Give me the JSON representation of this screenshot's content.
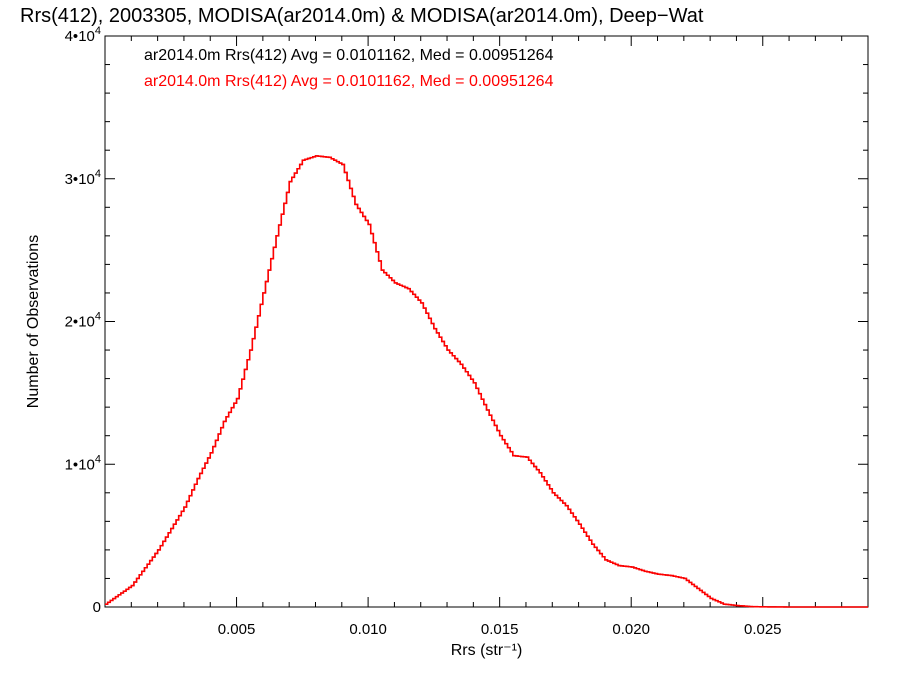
{
  "chart_data": {
    "type": "line",
    "title": "Rrs(412), 2003305, MODISA(ar2014.0m) & MODISA(ar2014.0m), Deep−Wat",
    "xlabel": "Rrs (str⁻¹)",
    "ylabel": "Number of Observations",
    "xlim": [
      0.0,
      0.029
    ],
    "ylim": [
      0,
      40000
    ],
    "x_ticks": [
      {
        "value": 0.005,
        "label": "0.005"
      },
      {
        "value": 0.01,
        "label": "0.010"
      },
      {
        "value": 0.015,
        "label": "0.015"
      },
      {
        "value": 0.02,
        "label": "0.020"
      },
      {
        "value": 0.025,
        "label": "0.025"
      }
    ],
    "y_ticks": [
      {
        "value": 0,
        "base": "0",
        "exp": ""
      },
      {
        "value": 10000,
        "base": "1•10",
        "exp": "4"
      },
      {
        "value": 20000,
        "base": "2•10",
        "exp": "4"
      },
      {
        "value": 30000,
        "base": "3•10",
        "exp": "4"
      },
      {
        "value": 40000,
        "base": "4•10",
        "exp": "4"
      }
    ],
    "grid": false,
    "legend": [
      {
        "text": "ar2014.0m Rrs(412) Avg = 0.0101162, Med = 0.00951264",
        "color": "#000000"
      },
      {
        "text": "ar2014.0m Rrs(412) Avg = 0.0101162, Med = 0.00951264",
        "color": "#ff0000"
      }
    ],
    "series": [
      {
        "color": "#000000",
        "x": [
          0.0,
          0.001,
          0.002,
          0.0025,
          0.003,
          0.0035,
          0.004,
          0.0045,
          0.005,
          0.0055,
          0.006,
          0.0065,
          0.007,
          0.0075,
          0.008,
          0.0085,
          0.009,
          0.0095,
          0.01,
          0.0105,
          0.011,
          0.0115,
          0.012,
          0.0125,
          0.013,
          0.0135,
          0.014,
          0.0145,
          0.015,
          0.0155,
          0.016,
          0.0165,
          0.017,
          0.0175,
          0.018,
          0.0185,
          0.019,
          0.0195,
          0.02,
          0.0205,
          0.021,
          0.0215,
          0.022,
          0.0225,
          0.023,
          0.0235,
          0.024,
          0.0245,
          0.025,
          0.026,
          0.027,
          0.028,
          0.029
        ],
        "y": [
          200,
          1500,
          4000,
          5500,
          7000,
          9000,
          10800,
          13000,
          14600,
          18000,
          22000,
          26000,
          29800,
          31300,
          31600,
          31500,
          31000,
          28200,
          26800,
          23600,
          22700,
          22300,
          21300,
          19500,
          18000,
          17000,
          15700,
          13800,
          12000,
          10600,
          10500,
          9400,
          8000,
          7100,
          5800,
          4400,
          3300,
          2900,
          2800,
          2500,
          2300,
          2200,
          2000,
          1300,
          600,
          200,
          100,
          30,
          10,
          0,
          0,
          0,
          0
        ]
      },
      {
        "color": "#ff0000",
        "x": [
          0.0,
          0.001,
          0.002,
          0.0025,
          0.003,
          0.0035,
          0.004,
          0.0045,
          0.005,
          0.0055,
          0.006,
          0.0065,
          0.007,
          0.0075,
          0.008,
          0.0085,
          0.009,
          0.0095,
          0.01,
          0.0105,
          0.011,
          0.0115,
          0.012,
          0.0125,
          0.013,
          0.0135,
          0.014,
          0.0145,
          0.015,
          0.0155,
          0.016,
          0.0165,
          0.017,
          0.0175,
          0.018,
          0.0185,
          0.019,
          0.0195,
          0.02,
          0.0205,
          0.021,
          0.0215,
          0.022,
          0.0225,
          0.023,
          0.0235,
          0.024,
          0.0245,
          0.025,
          0.026,
          0.027,
          0.028,
          0.029
        ],
        "y": [
          200,
          1500,
          4000,
          5500,
          7000,
          9000,
          10800,
          13000,
          14600,
          18000,
          22000,
          26000,
          29800,
          31300,
          31600,
          31500,
          31000,
          28200,
          26800,
          23600,
          22700,
          22300,
          21300,
          19500,
          18000,
          17000,
          15700,
          13800,
          12000,
          10600,
          10500,
          9400,
          8000,
          7100,
          5800,
          4400,
          3300,
          2900,
          2800,
          2500,
          2300,
          2200,
          2000,
          1300,
          600,
          200,
          100,
          30,
          10,
          0,
          0,
          0,
          0
        ]
      }
    ]
  }
}
